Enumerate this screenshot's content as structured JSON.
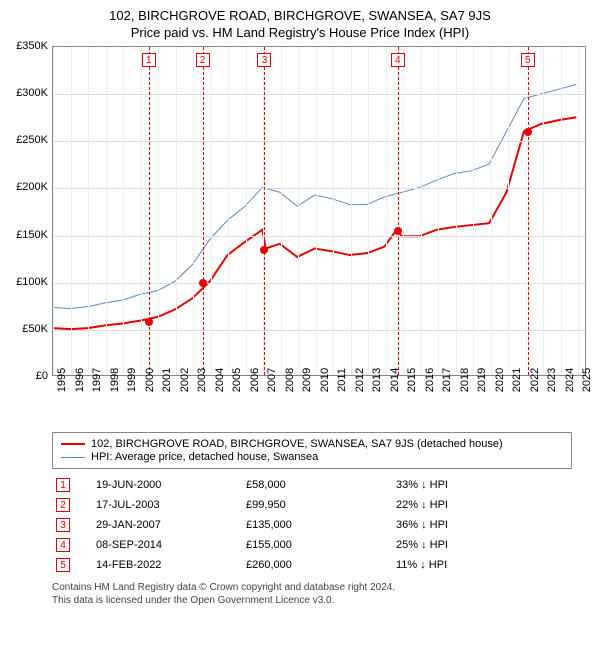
{
  "title_main": "102, BIRCHGROVE ROAD, BIRCHGROVE, SWANSEA, SA7 9JS",
  "title_sub": "Price paid vs. HM Land Registry's House Price Index (HPI)",
  "chart": {
    "type": "line",
    "background_color": "#ffffff",
    "grid_color": "#dcdcdc",
    "border_color": "#888888",
    "ylim": [
      0,
      350000
    ],
    "ytick_step": 50000,
    "yticks": [
      "£0",
      "£50K",
      "£100K",
      "£150K",
      "£200K",
      "£250K",
      "£300K",
      "£350K"
    ],
    "xlim": [
      1995,
      2025.5
    ],
    "xticks": [
      1995,
      1996,
      1997,
      1998,
      1999,
      2000,
      2001,
      2002,
      2003,
      2004,
      2005,
      2006,
      2007,
      2008,
      2009,
      2010,
      2011,
      2012,
      2013,
      2014,
      2015,
      2016,
      2017,
      2018,
      2019,
      2020,
      2021,
      2022,
      2023,
      2024,
      2025
    ],
    "label_fontsize": 11,
    "series": [
      {
        "name": "hpi",
        "label": "HPI: Average price, detached house, Swansea",
        "color": "#5b89c9",
        "width": 1,
        "points": [
          [
            1995,
            72000
          ],
          [
            1996,
            71000
          ],
          [
            1997,
            73000
          ],
          [
            1998,
            77000
          ],
          [
            1999,
            80000
          ],
          [
            2000,
            86000
          ],
          [
            2001,
            90000
          ],
          [
            2002,
            100000
          ],
          [
            2003,
            118000
          ],
          [
            2004,
            145000
          ],
          [
            2005,
            165000
          ],
          [
            2006,
            180000
          ],
          [
            2007,
            200000
          ],
          [
            2008,
            195000
          ],
          [
            2009,
            180000
          ],
          [
            2010,
            192000
          ],
          [
            2011,
            188000
          ],
          [
            2012,
            182000
          ],
          [
            2013,
            182000
          ],
          [
            2014,
            190000
          ],
          [
            2015,
            195000
          ],
          [
            2016,
            200000
          ],
          [
            2017,
            208000
          ],
          [
            2018,
            215000
          ],
          [
            2019,
            218000
          ],
          [
            2020,
            225000
          ],
          [
            2021,
            260000
          ],
          [
            2022,
            295000
          ],
          [
            2023,
            300000
          ],
          [
            2024,
            305000
          ],
          [
            2025,
            310000
          ]
        ]
      },
      {
        "name": "price_paid",
        "label": "102, BIRCHGROVE ROAD, BIRCHGROVE, SWANSEA, SA7 9JS (detached house)",
        "color": "#e60000",
        "width": 2,
        "points": [
          [
            1995,
            50000
          ],
          [
            1996,
            49000
          ],
          [
            1997,
            50000
          ],
          [
            1998,
            53000
          ],
          [
            1999,
            55000
          ],
          [
            2000,
            58000
          ],
          [
            2001,
            62000
          ],
          [
            2002,
            70000
          ],
          [
            2003,
            82000
          ],
          [
            2004,
            100000
          ],
          [
            2005,
            128000
          ],
          [
            2006,
            142000
          ],
          [
            2007,
            155000
          ],
          [
            2007.2,
            135000
          ],
          [
            2008,
            140000
          ],
          [
            2009,
            126000
          ],
          [
            2010,
            135000
          ],
          [
            2011,
            132000
          ],
          [
            2012,
            128000
          ],
          [
            2013,
            130000
          ],
          [
            2014,
            137000
          ],
          [
            2014.7,
            155000
          ],
          [
            2015,
            148000
          ],
          [
            2016,
            148000
          ],
          [
            2017,
            155000
          ],
          [
            2018,
            158000
          ],
          [
            2019,
            160000
          ],
          [
            2020,
            162000
          ],
          [
            2021,
            195000
          ],
          [
            2022,
            260000
          ],
          [
            2023,
            268000
          ],
          [
            2024,
            272000
          ],
          [
            2025,
            275000
          ]
        ]
      }
    ],
    "markers": [
      {
        "n": "1",
        "x": 2000.47,
        "y": 58000
      },
      {
        "n": "2",
        "x": 2003.54,
        "y": 99950
      },
      {
        "n": "3",
        "x": 2007.08,
        "y": 135000
      },
      {
        "n": "4",
        "x": 2014.69,
        "y": 155000
      },
      {
        "n": "5",
        "x": 2022.12,
        "y": 260000
      }
    ],
    "marker_color": "#e60000"
  },
  "legend": {
    "items": [
      {
        "color": "#e60000",
        "width": 2,
        "label": "102, BIRCHGROVE ROAD, BIRCHGROVE, SWANSEA, SA7 9JS (detached house)"
      },
      {
        "color": "#5b89c9",
        "width": 1,
        "label": "HPI: Average price, detached house, Swansea"
      }
    ]
  },
  "events": [
    {
      "n": "1",
      "date": "19-JUN-2000",
      "price": "£58,000",
      "diff": "33% ↓ HPI"
    },
    {
      "n": "2",
      "date": "17-JUL-2003",
      "price": "£99,950",
      "diff": "22% ↓ HPI"
    },
    {
      "n": "3",
      "date": "29-JAN-2007",
      "price": "£135,000",
      "diff": "36% ↓ HPI"
    },
    {
      "n": "4",
      "date": "08-SEP-2014",
      "price": "£155,000",
      "diff": "25% ↓ HPI"
    },
    {
      "n": "5",
      "date": "14-FEB-2022",
      "price": "£260,000",
      "diff": "11% ↓ HPI"
    }
  ],
  "footer_line1": "Contains HM Land Registry data © Crown copyright and database right 2024.",
  "footer_line2": "This data is licensed under the Open Government Licence v3.0."
}
